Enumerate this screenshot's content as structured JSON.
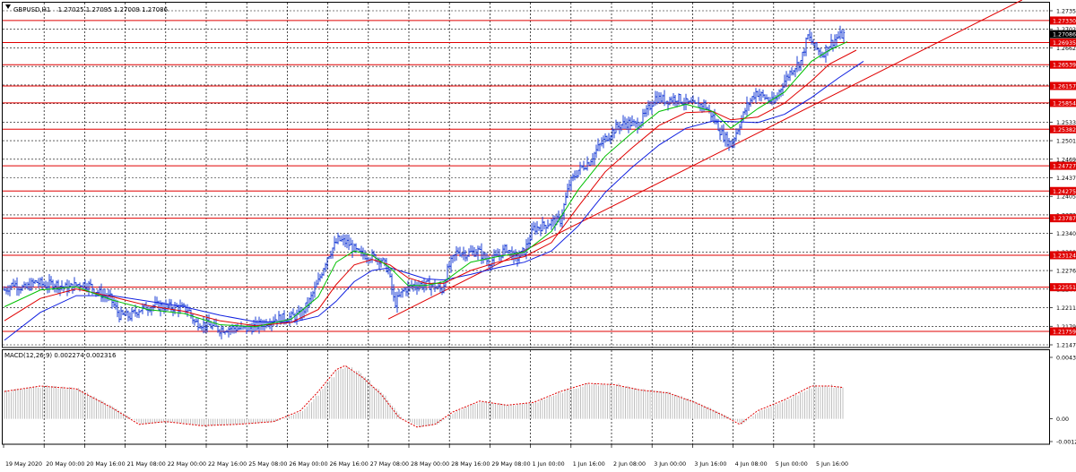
{
  "header": {
    "symbol": "GBPUSD,H1",
    "ohlc": "1.27025 1.27095 1.27009 1.27086"
  },
  "colors": {
    "background": "#ffffff",
    "border": "#000000",
    "grid": "#000000",
    "candles": "#1c3fd6",
    "ma_fast": "#00c000",
    "ma_mid": "#e00000",
    "ma_slow": "#1020e0",
    "level": "#e00000",
    "trendline": "#e00000",
    "macd_hist": "#c0c0c0",
    "macd_signal": "#e00000",
    "current_price_bg": "#000000"
  },
  "chart_data": [
    {
      "type": "candlestick",
      "title": "GBPUSD,H1",
      "ylim": [
        1.2147,
        1.2765
      ],
      "yticks": [
        "1.27350",
        "1.27020",
        "1.26625",
        "1.26305",
        "1.25980",
        "1.25660",
        "1.25335",
        "1.25015",
        "1.24690",
        "1.24370",
        "1.24050",
        "1.23725",
        "1.23405",
        "1.23080",
        "1.22760",
        "1.22440",
        "1.22115",
        "1.21795",
        "1.21470"
      ],
      "xticks": [
        "19 May 2020",
        "20 May 00:00",
        "20 May 16:00",
        "21 May 08:00",
        "22 May 00:00",
        "22 May 16:00",
        "25 May 08:00",
        "26 May 00:00",
        "26 May 16:00",
        "27 May 08:00",
        "28 May 00:00",
        "28 May 16:00",
        "29 May 08:00",
        "1 Jun 00:00",
        "1 Jun 16:00",
        "2 Jun 08:00",
        "3 Jun 00:00",
        "3 Jun 16:00",
        "4 Jun 08:00",
        "5 Jun 00:00",
        "5 Jun 16:00"
      ],
      "current_price": "1.27086",
      "levels": [
        "1.27330",
        "1.26935",
        "1.26539",
        "1.26157",
        "1.25854",
        "1.25382",
        "1.24727",
        "1.24275",
        "1.23787",
        "1.23124",
        "1.22551",
        "1.21759"
      ],
      "close_path": [
        [
          0,
          1.225
        ],
        [
          10,
          1.2262
        ],
        [
          22,
          1.2252
        ],
        [
          35,
          1.2265
        ],
        [
          45,
          1.2258
        ],
        [
          55,
          1.2262
        ],
        [
          70,
          1.2253
        ],
        [
          85,
          1.2262
        ],
        [
          95,
          1.2258
        ],
        [
          105,
          1.2245
        ],
        [
          118,
          1.2235
        ],
        [
          128,
          1.2205
        ],
        [
          140,
          1.2203
        ],
        [
          150,
          1.2215
        ],
        [
          165,
          1.2222
        ],
        [
          180,
          1.222
        ],
        [
          195,
          1.2218
        ],
        [
          205,
          1.2215
        ],
        [
          212,
          1.2192
        ],
        [
          225,
          1.2188
        ],
        [
          240,
          1.218
        ],
        [
          255,
          1.2182
        ],
        [
          270,
          1.218
        ],
        [
          285,
          1.2188
        ],
        [
          300,
          1.2198
        ],
        [
          315,
          1.22
        ],
        [
          330,
          1.2205
        ],
        [
          340,
          1.223
        ],
        [
          350,
          1.2265
        ],
        [
          360,
          1.231
        ],
        [
          372,
          1.234
        ],
        [
          382,
          1.2335
        ],
        [
          395,
          1.2315
        ],
        [
          410,
          1.231
        ],
        [
          420,
          1.2305
        ],
        [
          428,
          1.2285
        ],
        [
          435,
          1.2225
        ],
        [
          445,
          1.225
        ],
        [
          455,
          1.2258
        ],
        [
          465,
          1.226
        ],
        [
          478,
          1.2258
        ],
        [
          488,
          1.225
        ],
        [
          495,
          1.229
        ],
        [
          505,
          1.232
        ],
        [
          515,
          1.2315
        ],
        [
          528,
          1.232
        ],
        [
          540,
          1.23
        ],
        [
          550,
          1.231
        ],
        [
          560,
          1.2325
        ],
        [
          570,
          1.2305
        ],
        [
          580,
          1.232
        ],
        [
          590,
          1.236
        ],
        [
          600,
          1.2365
        ],
        [
          610,
          1.2372
        ],
        [
          620,
          1.2375
        ],
        [
          630,
          1.244
        ],
        [
          640,
          1.2465
        ],
        [
          652,
          1.248
        ],
        [
          662,
          1.2505
        ],
        [
          672,
          1.2525
        ],
        [
          685,
          1.2545
        ],
        [
          695,
          1.255
        ],
        [
          705,
          1.2545
        ],
        [
          715,
          1.2565
        ],
        [
          725,
          1.2595
        ],
        [
          738,
          1.259
        ],
        [
          750,
          1.2595
        ],
        [
          760,
          1.2585
        ],
        [
          770,
          1.258
        ],
        [
          780,
          1.2583
        ],
        [
          790,
          1.256
        ],
        [
          800,
          1.253
        ],
        [
          810,
          1.251
        ],
        [
          818,
          1.254
        ],
        [
          828,
          1.258
        ],
        [
          838,
          1.2605
        ],
        [
          848,
          1.2595
        ],
        [
          858,
          1.2585
        ],
        [
          868,
          1.262
        ],
        [
          878,
          1.2645
        ],
        [
          888,
          1.266
        ],
        [
          896,
          1.2705
        ],
        [
          904,
          1.2685
        ],
        [
          912,
          1.2672
        ],
        [
          920,
          1.269
        ],
        [
          928,
          1.2702
        ],
        [
          936,
          1.2708
        ]
      ],
      "ma_fast": [
        [
          0,
          1.222
        ],
        [
          40,
          1.225
        ],
        [
          80,
          1.2256
        ],
        [
          120,
          1.2232
        ],
        [
          160,
          1.2215
        ],
        [
          200,
          1.2208
        ],
        [
          240,
          1.2188
        ],
        [
          280,
          1.2184
        ],
        [
          320,
          1.2198
        ],
        [
          350,
          1.2238
        ],
        [
          370,
          1.23
        ],
        [
          390,
          1.232
        ],
        [
          410,
          1.2312
        ],
        [
          430,
          1.229
        ],
        [
          450,
          1.2258
        ],
        [
          470,
          1.2258
        ],
        [
          490,
          1.2265
        ],
        [
          520,
          1.23
        ],
        [
          550,
          1.231
        ],
        [
          580,
          1.2318
        ],
        [
          610,
          1.2355
        ],
        [
          640,
          1.243
        ],
        [
          670,
          1.249
        ],
        [
          700,
          1.2532
        ],
        [
          730,
          1.257
        ],
        [
          760,
          1.2583
        ],
        [
          790,
          1.257
        ],
        [
          810,
          1.254
        ],
        [
          840,
          1.2575
        ],
        [
          870,
          1.2605
        ],
        [
          900,
          1.266
        ],
        [
          920,
          1.268
        ],
        [
          940,
          1.2695
        ]
      ],
      "ma_mid": [
        [
          0,
          1.2195
        ],
        [
          40,
          1.2235
        ],
        [
          80,
          1.2252
        ],
        [
          120,
          1.2238
        ],
        [
          160,
          1.2222
        ],
        [
          200,
          1.2212
        ],
        [
          240,
          1.2195
        ],
        [
          280,
          1.2186
        ],
        [
          320,
          1.2192
        ],
        [
          350,
          1.2215
        ],
        [
          370,
          1.226
        ],
        [
          390,
          1.2295
        ],
        [
          410,
          1.2305
        ],
        [
          430,
          1.2295
        ],
        [
          450,
          1.2272
        ],
        [
          470,
          1.2262
        ],
        [
          490,
          1.2262
        ],
        [
          520,
          1.2285
        ],
        [
          550,
          1.23
        ],
        [
          580,
          1.231
        ],
        [
          610,
          1.2335
        ],
        [
          640,
          1.24
        ],
        [
          670,
          1.2462
        ],
        [
          700,
          1.2505
        ],
        [
          730,
          1.2545
        ],
        [
          760,
          1.2568
        ],
        [
          790,
          1.257
        ],
        [
          810,
          1.2555
        ],
        [
          840,
          1.256
        ],
        [
          870,
          1.2585
        ],
        [
          900,
          1.2625
        ],
        [
          920,
          1.2655
        ],
        [
          950,
          1.268
        ]
      ],
      "ma_slow": [
        [
          0,
          1.216
        ],
        [
          40,
          1.221
        ],
        [
          80,
          1.224
        ],
        [
          120,
          1.224
        ],
        [
          160,
          1.223
        ],
        [
          200,
          1.222
        ],
        [
          240,
          1.2205
        ],
        [
          280,
          1.2193
        ],
        [
          320,
          1.2192
        ],
        [
          350,
          1.2203
        ],
        [
          370,
          1.223
        ],
        [
          390,
          1.2265
        ],
        [
          410,
          1.2285
        ],
        [
          430,
          1.229
        ],
        [
          450,
          1.228
        ],
        [
          470,
          1.227
        ],
        [
          490,
          1.2268
        ],
        [
          520,
          1.2278
        ],
        [
          550,
          1.229
        ],
        [
          580,
          1.23
        ],
        [
          610,
          1.232
        ],
        [
          640,
          1.2365
        ],
        [
          670,
          1.2425
        ],
        [
          700,
          1.247
        ],
        [
          730,
          1.251
        ],
        [
          760,
          1.254
        ],
        [
          790,
          1.2553
        ],
        [
          810,
          1.2552
        ],
        [
          840,
          1.255
        ],
        [
          870,
          1.2565
        ],
        [
          900,
          1.2595
        ],
        [
          930,
          1.263
        ],
        [
          958,
          1.266
        ]
      ],
      "trendline": [
        [
          428,
          1.2198
        ],
        [
          1135,
          1.277
        ]
      ]
    },
    {
      "type": "macd",
      "title": "MACD(12,26,9) 0.002274 0.002316",
      "params": "MACD(12,26,9)",
      "value": "0.002274",
      "signal_value": "0.002316",
      "ylim": [
        -0.0013,
        0.0045
      ],
      "yticks": [
        "0.004372",
        "0.00",
        "-0.001277"
      ],
      "signal": [
        [
          0,
          0.002
        ],
        [
          40,
          0.0024
        ],
        [
          80,
          0.0022
        ],
        [
          120,
          0.0008
        ],
        [
          150,
          -0.0004
        ],
        [
          180,
          -0.0002
        ],
        [
          220,
          -0.0005
        ],
        [
          260,
          -0.0004
        ],
        [
          300,
          -0.0002
        ],
        [
          330,
          0.0006
        ],
        [
          350,
          0.002
        ],
        [
          370,
          0.0036
        ],
        [
          380,
          0.0039
        ],
        [
          400,
          0.003
        ],
        [
          420,
          0.0018
        ],
        [
          440,
          0.0001
        ],
        [
          460,
          -0.0006
        ],
        [
          480,
          -0.0004
        ],
        [
          500,
          0.0005
        ],
        [
          530,
          0.0013
        ],
        [
          560,
          0.001
        ],
        [
          590,
          0.0012
        ],
        [
          620,
          0.002
        ],
        [
          650,
          0.0026
        ],
        [
          680,
          0.0025
        ],
        [
          710,
          0.0021
        ],
        [
          740,
          0.0019
        ],
        [
          770,
          0.0012
        ],
        [
          800,
          0.0003
        ],
        [
          820,
          -0.0004
        ],
        [
          840,
          0.0006
        ],
        [
          870,
          0.0014
        ],
        [
          900,
          0.0024
        ],
        [
          920,
          0.0024
        ],
        [
          935,
          0.0023
        ]
      ]
    }
  ]
}
